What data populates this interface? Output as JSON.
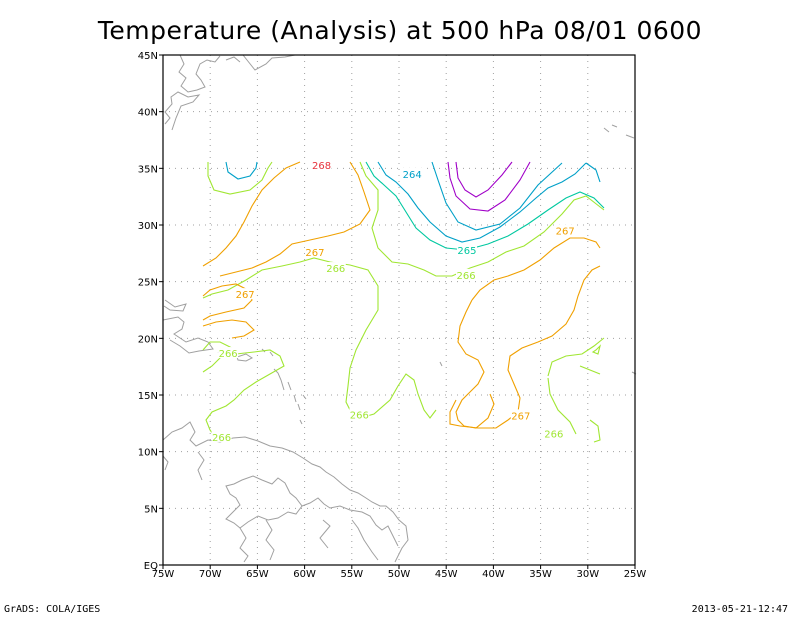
{
  "title": "Temperature (Analysis) at 500 hPa 08/01 0600",
  "footer": {
    "left": "GrADS: COLA/IGES",
    "right": "2013-05-21-12:47"
  },
  "map": {
    "lon_range": [
      -75,
      -25
    ],
    "lat_range": [
      0,
      45
    ],
    "grid": true,
    "lat_ticks": [
      {
        "value": 45,
        "label": "45N"
      },
      {
        "value": 40,
        "label": "40N"
      },
      {
        "value": 35,
        "label": "35N"
      },
      {
        "value": 30,
        "label": "30N"
      },
      {
        "value": 25,
        "label": "25N"
      },
      {
        "value": 20,
        "label": "20N"
      },
      {
        "value": 15,
        "label": "15N"
      },
      {
        "value": 10,
        "label": "10N"
      },
      {
        "value": 5,
        "label": "5N"
      },
      {
        "value": 0,
        "label": "EQ"
      }
    ],
    "lon_ticks": [
      {
        "value": -75,
        "label": "75W"
      },
      {
        "value": -70,
        "label": "70W"
      },
      {
        "value": -65,
        "label": "65W"
      },
      {
        "value": -60,
        "label": "60W"
      },
      {
        "value": -55,
        "label": "55W"
      },
      {
        "value": -50,
        "label": "50W"
      },
      {
        "value": -45,
        "label": "45W"
      },
      {
        "value": -40,
        "label": "40W"
      },
      {
        "value": -35,
        "label": "35W"
      },
      {
        "value": -30,
        "label": "30W"
      },
      {
        "value": -25,
        "label": "25W"
      }
    ],
    "contour_colors": {
      "263": "#a000c8",
      "264": "#00a0c8",
      "265": "#00c8a0",
      "266": "#a0e632",
      "267": "#f0a000",
      "268": "#e6323c",
      "coast": "#a0a0a0"
    },
    "contour_labels": [
      {
        "text": "268",
        "lon": -58.2,
        "lat": 35.3,
        "level": "268"
      },
      {
        "text": "264",
        "lon": -48.6,
        "lat": 34.5,
        "level": "264"
      },
      {
        "text": "267",
        "lon": -58.9,
        "lat": 27.6,
        "level": "267"
      },
      {
        "text": "265",
        "lon": -42.8,
        "lat": 27.8,
        "level": "265"
      },
      {
        "text": "266",
        "lon": -56.7,
        "lat": 26.2,
        "level": "266"
      },
      {
        "text": "266",
        "lon": -42.9,
        "lat": 25.6,
        "level": "266"
      },
      {
        "text": "267",
        "lon": -32.4,
        "lat": 29.5,
        "level": "267"
      },
      {
        "text": "267",
        "lon": -66.3,
        "lat": 23.9,
        "level": "267"
      },
      {
        "text": "266",
        "lon": -68.1,
        "lat": 18.7,
        "level": "266"
      },
      {
        "text": "266",
        "lon": -54.2,
        "lat": 13.3,
        "level": "266"
      },
      {
        "text": "267",
        "lon": -37.1,
        "lat": 13.2,
        "level": "267"
      },
      {
        "text": "266",
        "lon": -68.8,
        "lat": 11.3,
        "level": "266"
      },
      {
        "text": "266",
        "lon": -33.6,
        "lat": 11.6,
        "level": "266"
      }
    ]
  }
}
